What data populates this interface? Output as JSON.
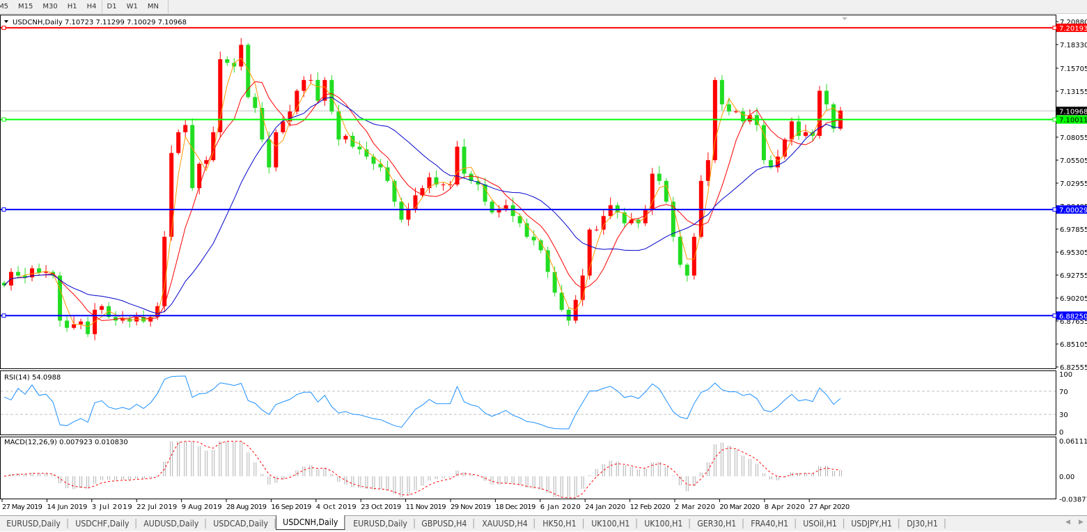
{
  "toolbar": {
    "timeframes": [
      "M5",
      "M15",
      "M30",
      "H1",
      "H4",
      "D1",
      "W1",
      "MN"
    ],
    "active": "D1"
  },
  "chart": {
    "symbol_header": "USDCNH,Daily  7.10723 7.11299 7.10029 7.10968",
    "current_price": "7.10968",
    "price_axis": [
      "7.20880",
      "7.18330",
      "7.15705",
      "7.13155",
      "7.08055",
      "7.05505",
      "7.02955",
      "7.00405",
      "6.97855",
      "6.95305",
      "6.92755",
      "6.90205",
      "6.87655",
      "6.85105",
      "6.82555"
    ],
    "hlines": [
      {
        "price": 7.20193,
        "label": "7.20193",
        "color": "#ff0000"
      },
      {
        "price": 7.10011,
        "label": "7.10011",
        "color": "#00ff00"
      },
      {
        "price": 7.00029,
        "label": "7.00029",
        "color": "#0000ff"
      },
      {
        "price": 6.8825,
        "label": "6.88250",
        "color": "#0000ff"
      }
    ],
    "date_axis": [
      "27 May 2019",
      "14 Jun 2019",
      "3 Jul 2019",
      "22 Jul 2019",
      "9 Aug 2019",
      "28 Aug 2019",
      "16 Sep 2019",
      "4 Oct 2019",
      "23 Oct 2019",
      "11 Nov 2019",
      "29 Nov 2019",
      "18 Dec 2019",
      "6 Jan 2020",
      "24 Jan 2020",
      "12 Feb 2020",
      "2 Mar 2020",
      "20 Mar 2020",
      "8 Apr 2020",
      "27 Apr 2020"
    ],
    "colors": {
      "bull": "#ff0000",
      "bear": "#22dd22",
      "ma_fast": "#ff9900",
      "ma_mid": "#ff0000",
      "ma_slow": "#0000cc",
      "rsi": "#1e90ff",
      "macd_hist": "#b0b0b0",
      "macd_signal": "#ff0000"
    }
  },
  "rsi": {
    "label": "RSI(14) 54.0988",
    "axis": [
      "100",
      "70",
      "30",
      "0"
    ]
  },
  "macd": {
    "label": "MACD(12,26,9) 0.007923 0.010830",
    "axis": [
      "0.061119",
      "0.00",
      "-0.038777"
    ]
  },
  "chart_data": {
    "type": "candlestick",
    "symbol": "USDCNH",
    "timeframe": "Daily",
    "x_range": [
      "27 May 2019",
      "May 2020"
    ],
    "ylim": [
      6.82555,
      7.2088
    ],
    "close": [
      6.916,
      6.931,
      6.927,
      6.925,
      6.935,
      6.93,
      6.931,
      6.927,
      6.877,
      6.869,
      6.873,
      6.876,
      6.862,
      6.889,
      6.893,
      6.881,
      6.877,
      6.879,
      6.876,
      6.881,
      6.876,
      6.881,
      6.893,
      6.97,
      7.063,
      7.086,
      7.094,
      7.024,
      7.051,
      7.055,
      7.086,
      7.167,
      7.163,
      7.159,
      7.183,
      7.125,
      7.113,
      7.078,
      7.047,
      7.086,
      7.098,
      7.109,
      7.132,
      7.144,
      7.144,
      7.121,
      7.144,
      7.109,
      7.078,
      7.082,
      7.07,
      7.067,
      7.059,
      7.051,
      7.047,
      7.032,
      7.009,
      6.989,
      7.001,
      7.016,
      7.024,
      7.036,
      7.028,
      7.028,
      7.028,
      7.07,
      7.04,
      7.032,
      7.028,
      7.009,
      6.997,
      7.001,
      7.005,
      6.993,
      6.985,
      6.97,
      6.966,
      6.955,
      6.931,
      6.908,
      6.889,
      6.877,
      6.9,
      6.927,
      6.978,
      6.978,
      6.993,
      7.005,
      6.997,
      6.985,
      6.989,
      6.985,
      7.001,
      7.04,
      7.032,
      7.009,
      6.97,
      6.939,
      6.927,
      6.97,
      7.032,
      7.055,
      7.144,
      7.117,
      7.109,
      7.109,
      7.098,
      7.105,
      7.094,
      7.055,
      7.047,
      7.059,
      7.078,
      7.098,
      7.082,
      7.086,
      7.082,
      7.132,
      7.117,
      7.09,
      7.11
    ]
  },
  "tabs": [
    "EURUSD,Daily",
    "USDCHF,Daily",
    "AUDUSD,Daily",
    "USDCAD,Daily",
    "USDCNH,Daily",
    "EURUSD,Daily",
    "GBPUSD,H4",
    "XAUUSD,H4",
    "HK50,H1",
    "UK100,H1",
    "UK100,H1",
    "GER30,H1",
    "FRA40,H1",
    "USOil,H1",
    "USDJPY,H1",
    "DJ30,H1"
  ],
  "active_tab": "USDCNH,Daily"
}
